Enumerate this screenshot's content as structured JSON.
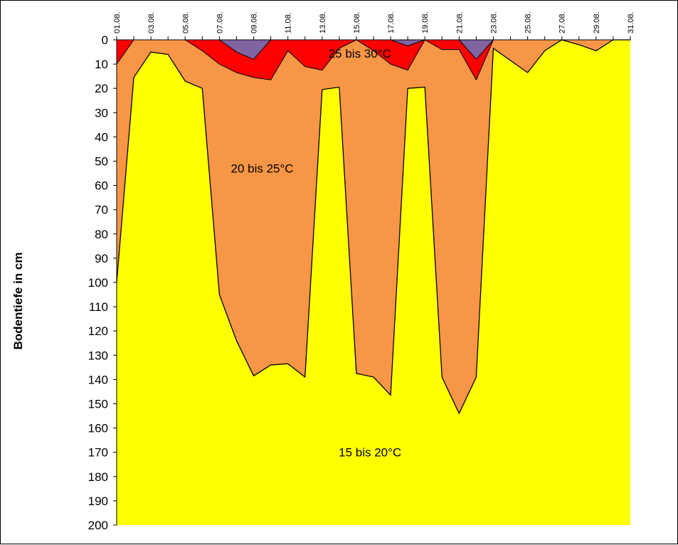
{
  "chart_data": {
    "type": "area",
    "xlabel": "",
    "ylabel": "Bodentiefe in cm",
    "ylim": [
      0,
      200
    ],
    "y_inverted": true,
    "y_ticks": [
      0,
      10,
      20,
      30,
      40,
      50,
      60,
      70,
      80,
      90,
      100,
      110,
      120,
      130,
      140,
      150,
      160,
      170,
      180,
      190,
      200
    ],
    "x_tick_labels": [
      "01.08.",
      "03.08.",
      "05.08.",
      "07.08.",
      "09.08.",
      "11.08.",
      "13.08.",
      "15.08.",
      "17.08.",
      "19.08.",
      "21.08.",
      "23.08.",
      "25.08.",
      "27.08.",
      "29.08.",
      "31.08."
    ],
    "days": [
      1,
      2,
      3,
      4,
      5,
      6,
      7,
      8,
      9,
      10,
      11,
      12,
      13,
      14,
      15,
      16,
      17,
      18,
      19,
      20,
      21,
      22,
      23,
      24,
      25,
      26,
      27,
      28,
      29,
      30,
      31
    ],
    "zones": [
      {
        "name": "15 bis 20°C",
        "color": "#FFFF00"
      },
      {
        "name": "20 bis 25°C",
        "color": "#F79646"
      },
      {
        "name": "25 bis 30°C",
        "color": "#FF0000"
      },
      {
        "name": "",
        "color": "#8064A2"
      }
    ],
    "boundaries": {
      "depth_above_15_20": [
        100,
        15.5,
        5,
        6,
        17,
        20,
        105,
        124,
        138.5,
        134,
        133.5,
        139,
        20.5,
        19.5,
        137.5,
        139,
        146.5,
        20,
        19.5,
        139,
        154,
        139,
        3.5,
        8.5,
        13.5,
        4.5,
        0,
        2,
        4.5,
        0,
        0
      ],
      "depth_above_20_25": [
        10,
        0,
        0,
        0,
        0,
        4.5,
        10,
        13.5,
        15.5,
        16.5,
        4.5,
        11,
        12.5,
        3.5,
        0,
        4.5,
        10,
        12.5,
        0,
        4,
        4,
        16.5,
        0,
        0,
        0,
        0,
        0,
        0,
        0,
        0,
        0
      ],
      "depth_above_25_30": [
        0,
        0,
        0,
        0,
        0,
        0,
        0,
        5,
        8,
        0,
        0,
        0,
        0,
        0,
        0,
        0,
        0,
        2.5,
        0,
        0,
        0,
        8,
        0,
        0,
        0,
        0,
        0,
        0,
        0,
        0,
        0
      ]
    },
    "zone_labels": [
      {
        "text": "25 bis 30°C",
        "day": 15.2,
        "depth": 5.5
      },
      {
        "text": "20 bis 25°C",
        "day": 9.5,
        "depth": 53
      },
      {
        "text": "15 bis 20°C",
        "day": 15.8,
        "depth": 170
      }
    ],
    "grid": false,
    "legend": "none"
  }
}
